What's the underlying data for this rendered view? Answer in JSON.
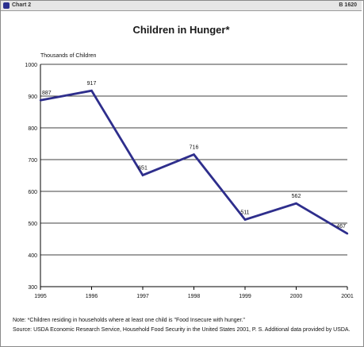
{
  "header": {
    "chart_number": "Chart 2",
    "report_number": "B 1620"
  },
  "chart_data": {
    "type": "line",
    "title": "Children in Hunger*",
    "ylabel": "Thousands of Children",
    "xlabel": "",
    "categories": [
      "1995",
      "1996",
      "1997",
      "1998",
      "1999",
      "2000",
      "2001"
    ],
    "series": [
      {
        "values": [
          887,
          917,
          651,
          716,
          511,
          562,
          467
        ]
      }
    ],
    "data_labels": [
      "887",
      "917",
      "651",
      "716",
      "511",
      "562",
      "467"
    ],
    "ylim": [
      300,
      1000
    ],
    "yticks": [
      300,
      400,
      500,
      600,
      700,
      800,
      900,
      1000
    ],
    "grid": true,
    "line_color": "#2e2e8c"
  },
  "notes": {
    "note": "Note: *Children residing in households where at least one child is \"Food Insecure with hunger.\"",
    "source": "Source: USDA Economic Research Service, Household Food Security in the United States 2001, P. S. Additional data provided by USDA."
  }
}
